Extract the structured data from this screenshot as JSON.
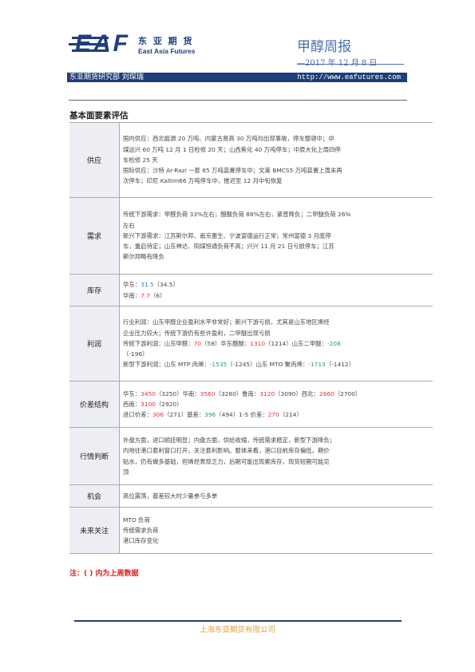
{
  "header": {
    "logo_text": "EAF",
    "logo_cn": "东 亚 期 货",
    "logo_en": "East Asia Futures",
    "report_title": "甲醇周报",
    "report_date": "—2017 年 12 月 8 日"
  },
  "bar": {
    "left": "东亚期货研究部  刘琛瑞",
    "url": "http://www.eafutures.com"
  },
  "section_title": "基本面要素评估",
  "rows": {
    "supply": {
      "label": "供应",
      "lines": [
        "国内供应：西北能源 20 万吨、内蒙古易高 30 万吨均出现事故，停车整顿中；中",
        "煤远兴 60 万吨 12 月 1 日检修 20 天；山西焦化 40 万吨停车；中原大化上周四停",
        "车检修 25 天",
        "国际供应：沙特 Ar-Razi 一套 85 万吨装置停车中；文莱 BMCS5 万吨装置上周末再",
        "次停车；印尼 Kaltim66 万吨停车中，推迟至 12 月中旬恢复"
      ]
    },
    "demand": {
      "label": "需求",
      "lines": [
        "传统下游需求：甲醛负荷 33%左右；醋酸负荷 88%左右，紧普降负；二甲醚负荷 26%",
        "左右",
        "新兴下游需求：江苏斯尔邦、南京惠生、宁波富德运行正常；常州富德 3 月底停",
        "车，重启待定；山东神达、阳煤恒通负荷不高；兴兴 11 月 21 日亏损停车；江苏",
        "斯尔邦略有降负"
      ]
    },
    "inventory": {
      "label": "库存",
      "east_label": "华东：",
      "east_value": "31.5",
      "east_prev": "（34.5）",
      "south_label": "华南：",
      "south_value": "7.7",
      "south_prev": "（6）"
    },
    "profit": {
      "label": "利润",
      "line1": "行业利润：山东甲醇企业盈利水平非常好；新兴下游亏损，尤其是山东地区烯烃",
      "line2": "企业压力较大；传统下游仍有些许盈利，二甲醚出现亏损",
      "t_pre": "传统下游利润：山东甲醛：",
      "t_v1": "70",
      "t_p1": "（58）华东醋酸：",
      "t_v2": "1310",
      "t_p2": "（1214）山东二甲醚：",
      "t_v3": "-208",
      "t_p3": "（-196）",
      "n_pre": "新型下游利润：山东 MTP 丙烯：",
      "n_v1": "-1535",
      "n_p1": "（-1245）山东 MTO 聚丙烯：",
      "n_v2": "-1713",
      "n_p2": "（-1412）"
    },
    "price": {
      "label": "价差结构",
      "a_pre": "华东：",
      "a_v1": "3450",
      "a_p1": "（3250）华南：",
      "a_v2": "3560",
      "a_p2": "（3280）鲁南：",
      "a_v3": "3120",
      "a_p3": "（3090）西北：",
      "a_v4": "2860",
      "a_p4": "（2700）",
      "b_pre": "西南：",
      "b_v1": "3100",
      "b_p1": "（2920）",
      "c_pre": "进口价差：",
      "c_v1": "306",
      "c_p1": "（271）基差：",
      "c_v2": "396",
      "c_p2": "（494）1-5 价差：",
      "c_v3": "270",
      "c_p3": "（214）"
    },
    "judgement": {
      "label": "行情判断",
      "lines": [
        "外盘方面，进口顺挂明显；内盘方面，供给收缩，传统需求稳定，新型下游降负；",
        "内地往港口套利窗口打开，关注套利影响。整体来看，港口目前库存偏低，期价",
        "贴水，仍有做多基础，但烯烃表现乏力，后期可能出现累库存，现货短期可能见",
        "顶"
      ]
    },
    "opportunity": {
      "label": "机会",
      "text": "高位震荡，基差较大时少量参与多单"
    },
    "future": {
      "label": "未来关注",
      "lines": [
        "MTO 负荷",
        "传统需求负荷",
        "港口库存变化"
      ]
    }
  },
  "note": "注：( ) 内为上周数据",
  "footer": "上海东亚期货有限公司",
  "colors": {
    "brand_navy": "#1f3f7a",
    "title_blue": "#4a6fb0",
    "value_blue": "#2f7fd1",
    "value_red": "#e03232",
    "value_green": "#1aa35a",
    "note_red": "#e01e1e",
    "footer_orange": "#e2a23a"
  }
}
